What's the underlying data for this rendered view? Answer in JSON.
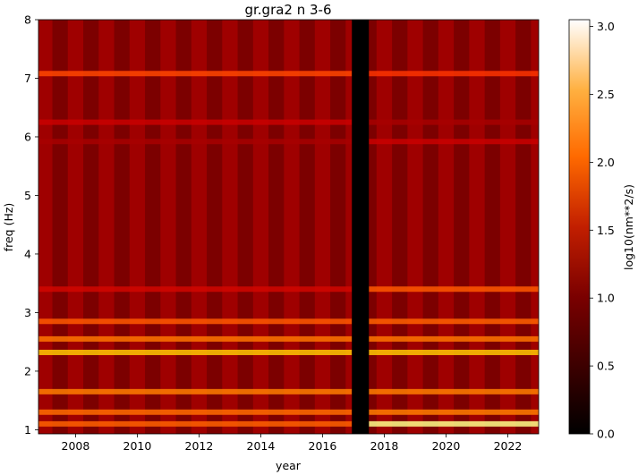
{
  "chart_data": {
    "type": "heatmap",
    "title": "gr.gra2 n 3-6",
    "xlabel": "year",
    "ylabel": "freq (Hz)",
    "xlim": [
      2006.8,
      2023.0
    ],
    "ylim": [
      0.93,
      8.0
    ],
    "x_ticks": [
      2008,
      2010,
      2012,
      2014,
      2016,
      2018,
      2020,
      2022
    ],
    "y_ticks": [
      1,
      2,
      3,
      4,
      5,
      6,
      7,
      8
    ],
    "data_gap": [
      2016.95,
      2017.5
    ],
    "colormap": "gist_heat",
    "colorbar": {
      "label": "log10(nm**2/s)",
      "range": [
        0.0,
        3.05
      ],
      "ticks": [
        "0.0",
        "0.5",
        "1.0",
        "1.5",
        "2.0",
        "2.5",
        "3.0"
      ],
      "tick_values": [
        0.0,
        0.5,
        1.0,
        1.5,
        2.0,
        2.5,
        3.0
      ]
    },
    "bands": [
      {
        "freq": 1.1,
        "value_2007_2016": 1.75,
        "value_2017_2023": 2.7
      },
      {
        "freq": 1.3,
        "value_2007_2016": 1.8,
        "value_2017_2023": 1.9
      },
      {
        "freq": 1.65,
        "value_2007_2016": 1.9,
        "value_2017_2023": 1.9
      },
      {
        "freq": 2.32,
        "value_2007_2016": 2.3,
        "value_2017_2023": 2.3
      },
      {
        "freq": 2.55,
        "value_2007_2016": 1.85,
        "value_2017_2023": 1.85
      },
      {
        "freq": 2.85,
        "value_2007_2016": 1.7,
        "value_2017_2023": 1.75
      },
      {
        "freq": 3.4,
        "value_2007_2016": 1.25,
        "value_2017_2023": 1.7
      },
      {
        "freq": 7.08,
        "value_2007_2016": 1.6,
        "value_2017_2023": 1.5
      },
      {
        "freq": 6.25,
        "value_2007_2016": 1.2,
        "value_2017_2023": 1.0
      },
      {
        "freq": 5.92,
        "value_2007_2016": 1.0,
        "value_2017_2023": 1.2
      }
    ],
    "background_value": 0.95
  }
}
